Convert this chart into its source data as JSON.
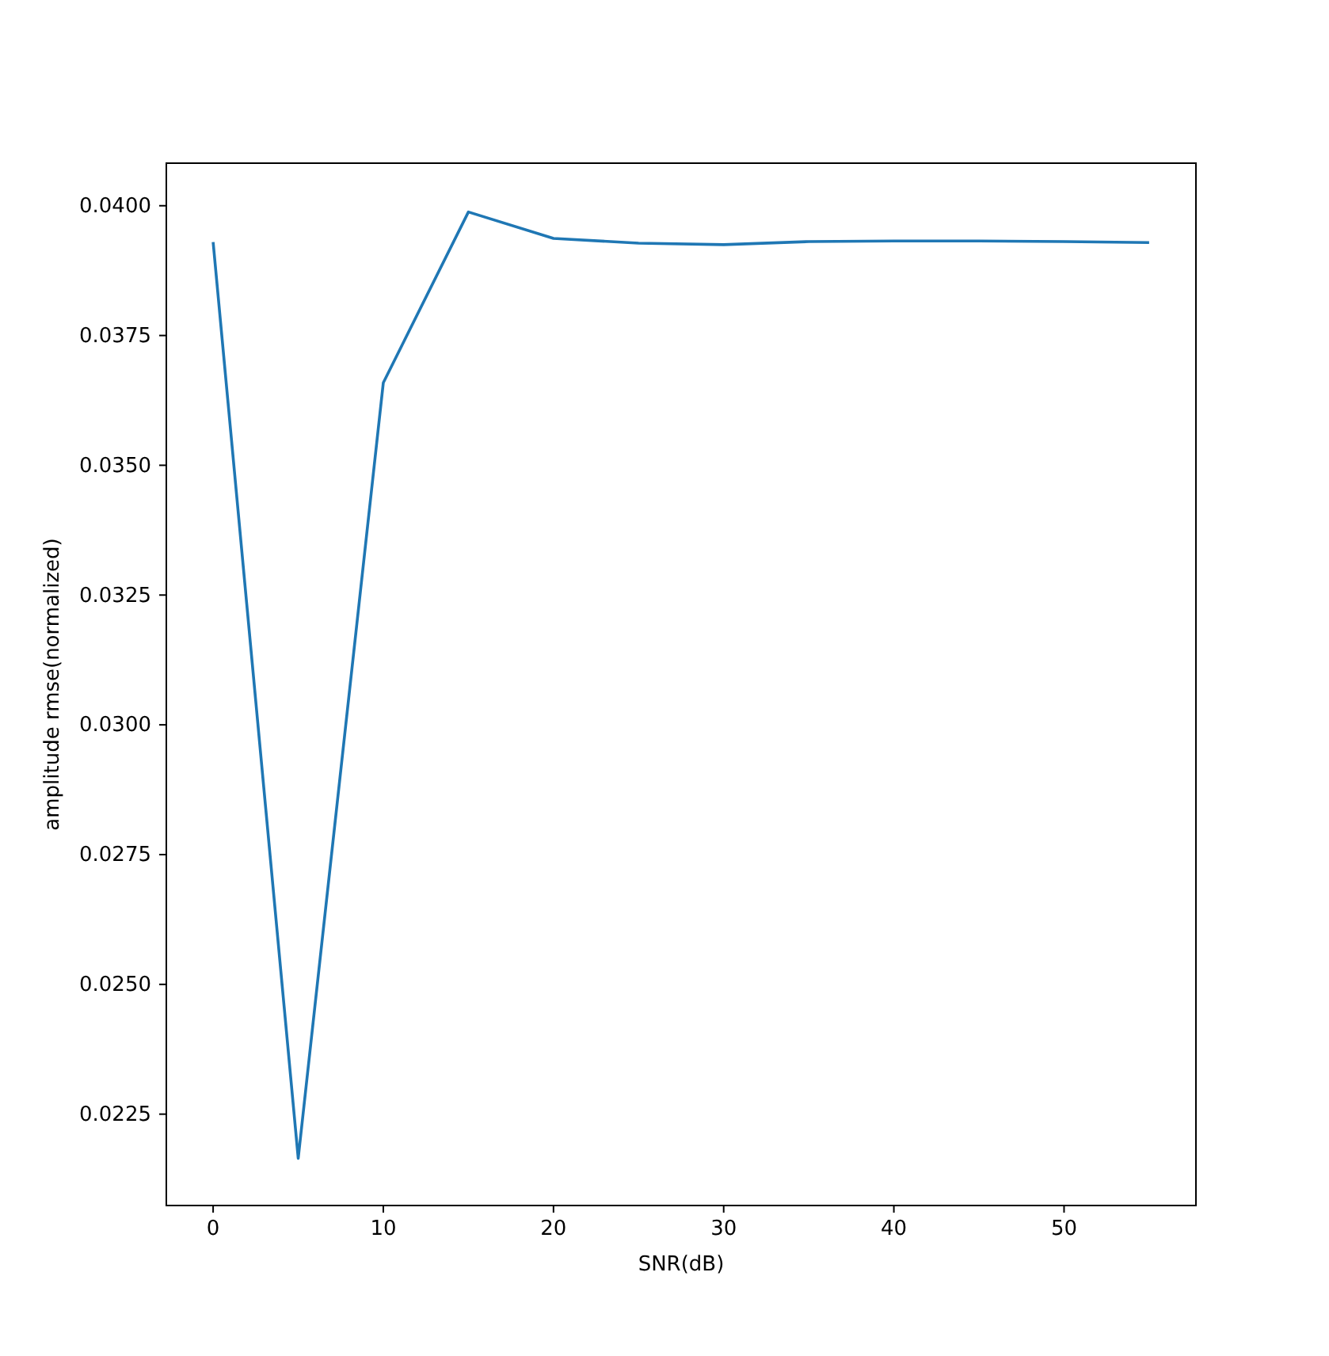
{
  "chart_data": {
    "type": "line",
    "xlabel": "SNR(dB)",
    "ylabel": "amplitude rmse(normalized)",
    "x": [
      0,
      5,
      10,
      15,
      20,
      25,
      30,
      35,
      40,
      45,
      50,
      55
    ],
    "series": [
      {
        "color": "#1f77b4",
        "values": [
          0.0393,
          0.02165,
          0.03659,
          0.03988,
          0.03937,
          0.03928,
          0.03925,
          0.03931,
          0.03932,
          0.03932,
          0.03931,
          0.03929
        ]
      }
    ],
    "xlim": [
      -2.75,
      57.75
    ],
    "ylim": [
      0.02074,
      0.04082
    ],
    "xticks": [
      0,
      10,
      20,
      30,
      40,
      50
    ],
    "yticks": [
      {
        "value": 0.0225,
        "label": "0.0225"
      },
      {
        "value": 0.025,
        "label": "0.0250"
      },
      {
        "value": 0.0275,
        "label": "0.0275"
      },
      {
        "value": 0.03,
        "label": "0.0300"
      },
      {
        "value": 0.0325,
        "label": "0.0325"
      },
      {
        "value": 0.035,
        "label": "0.0350"
      },
      {
        "value": 0.0375,
        "label": "0.0375"
      },
      {
        "value": 0.04,
        "label": "0.0400"
      }
    ],
    "grid": false
  }
}
